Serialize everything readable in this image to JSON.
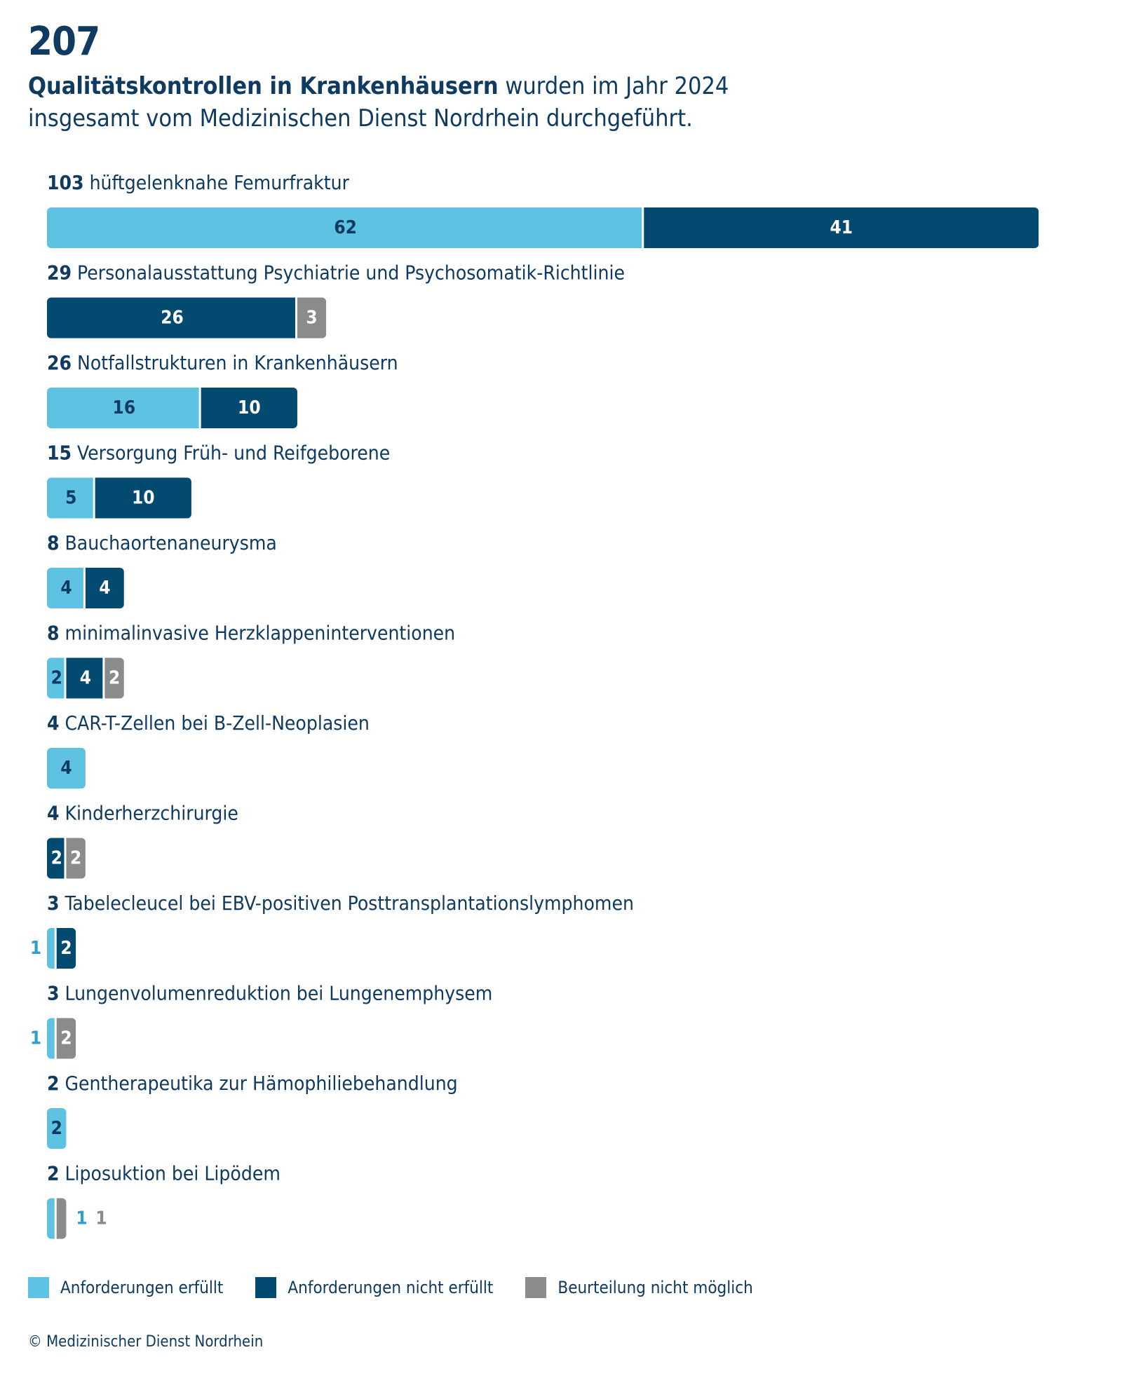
{
  "header": {
    "big_number": "207",
    "subtitle_bold": "Qualitätskontrollen in Krankenhäusern",
    "subtitle_line1_rest": " wurden im Jahr 2024",
    "subtitle_line2": "insgesamt vom Medizinischen Dienst Nordrhein durchgeführt."
  },
  "colors": {
    "fulfilled": "#5ec3e2",
    "not_fulfilled": "#034a70",
    "not_possible": "#8b8b8b",
    "text": "#0f3a61",
    "outside_fulfilled": "#2a9fd0"
  },
  "chart_data": {
    "type": "bar",
    "orientation": "horizontal",
    "stacked": true,
    "series": [
      {
        "name": "Anforderungen erfüllt",
        "color": "#5ec3e2"
      },
      {
        "name": "Anforderungen nicht erfüllt",
        "color": "#034a70"
      },
      {
        "name": "Beurteilung nicht möglich",
        "color": "#8b8b8b"
      }
    ],
    "categories": [
      {
        "total": "103",
        "label": "hüftgelenknahe Femurfraktur",
        "values": [
          62,
          41,
          0
        ]
      },
      {
        "total": "29",
        "label": "Personalausstattung Psychiatrie und Psychosomatik-Richtlinie",
        "values": [
          0,
          26,
          3
        ]
      },
      {
        "total": "26",
        "label": "Notfallstrukturen in Krankenhäusern",
        "values": [
          16,
          10,
          0
        ]
      },
      {
        "total": "15",
        "label": "Versorgung Früh- und Reifgeborene",
        "values": [
          5,
          10,
          0
        ]
      },
      {
        "total": "8",
        "label": "Bauchaortenaneurysma",
        "values": [
          4,
          4,
          0
        ]
      },
      {
        "total": "8",
        "label": "minimalinvasive Herzklappeninterventionen",
        "values": [
          2,
          4,
          2
        ]
      },
      {
        "total": "4",
        "label": "CAR-T-Zellen bei B-Zell-Neoplasien",
        "values": [
          4,
          0,
          0
        ]
      },
      {
        "total": "4",
        "label": "Kinderherzchirurgie",
        "values": [
          0,
          2,
          2
        ]
      },
      {
        "total": "3",
        "label": "Tabelecleucel bei EBV-positiven Posttransplantationslymphomen",
        "values": [
          1,
          2,
          0
        ]
      },
      {
        "total": "3",
        "label": "Lungenvolumenreduktion bei Lungenemphysem",
        "values": [
          1,
          0,
          2
        ]
      },
      {
        "total": "2",
        "label": "Gentherapeutika zur Hämophiliebehandlung",
        "values": [
          2,
          0,
          0
        ]
      },
      {
        "total": "2",
        "label": "Liposuktion bei Lipödem",
        "values": [
          1,
          0,
          1
        ]
      }
    ],
    "legend": "bottom-left"
  },
  "legend": {
    "fulfilled": "Anforderungen erfüllt",
    "not_fulfilled": "Anforderungen nicht erfüllt",
    "not_possible": "Beurteilung nicht möglich"
  },
  "footer": {
    "copyright": "© Medizinischer Dienst Nordrhein"
  }
}
